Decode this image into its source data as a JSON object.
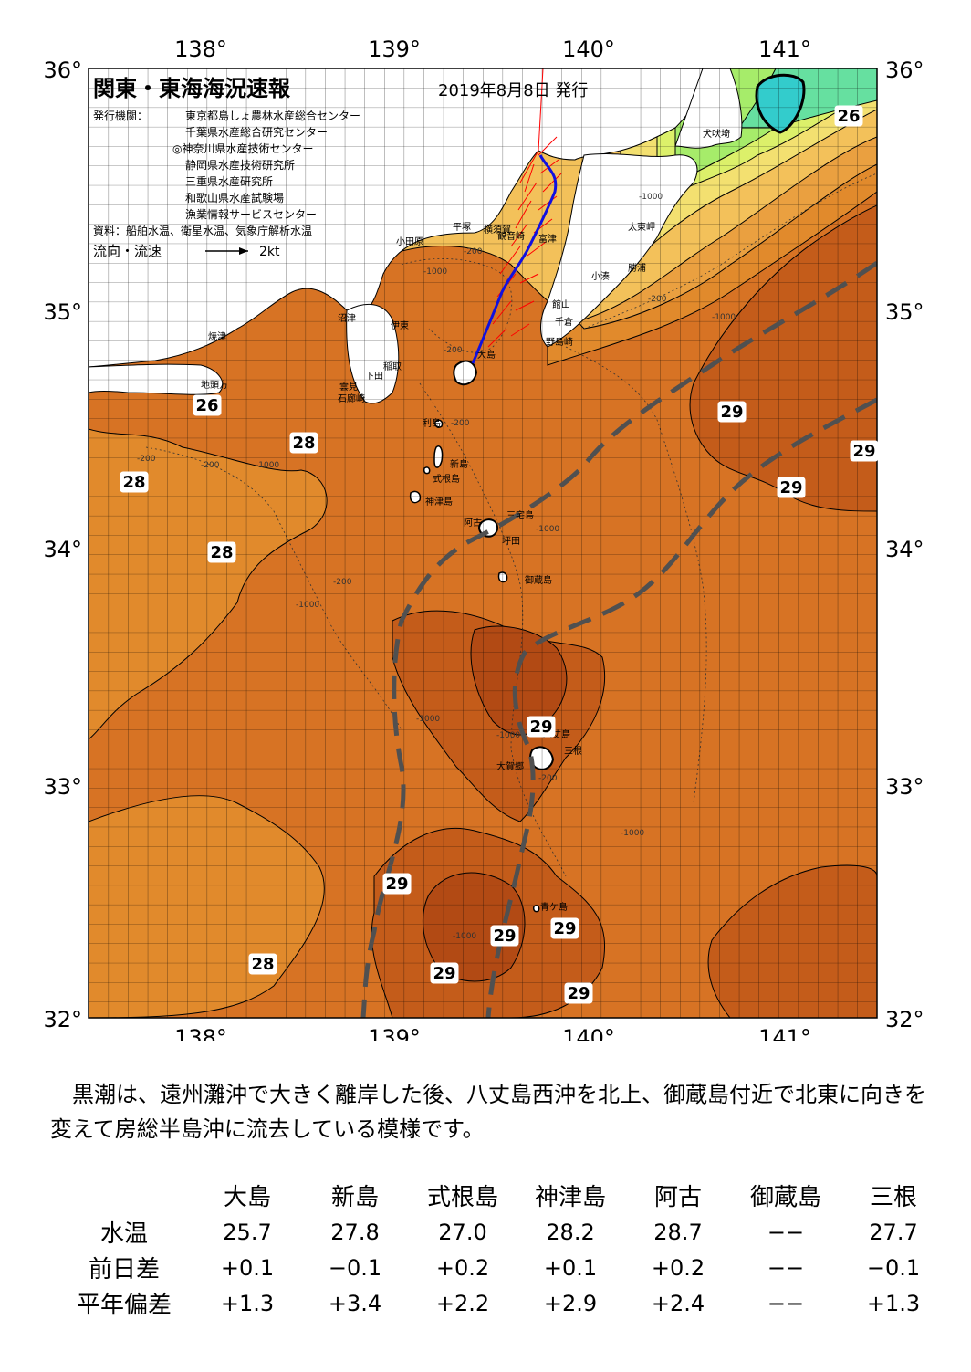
{
  "header": {
    "title": "関東・東海海況速報",
    "issue_date": "2019年8月8日 発行",
    "issuer_label": "発行機関：",
    "issuers": [
      "東京都島しょ農林水産総合センター",
      "千葉県水産総合研究センター",
      "◎神奈川県水産技術センター",
      "静岡県水産技術研究所",
      "三重県水産研究所",
      "和歌山県水産試験場",
      "漁業情報サービスセンター"
    ],
    "sources": "資料：船舶水温、衛星水温、気象庁解析水温",
    "flow_legend_label": "流向・流速",
    "flow_legend_speed": "2kt"
  },
  "axes": {
    "lon_labels": [
      "138°",
      "139°",
      "140°",
      "141°"
    ],
    "lat_labels": [
      "36°",
      "35°",
      "34°",
      "33°",
      "32°"
    ]
  },
  "places": {
    "inubosaki": "犬吠埼",
    "taitomisaki": "太東岬",
    "katsuura": "勝浦",
    "kominato": "小湊",
    "futtsu": "富津",
    "kannonzaki": "観音崎",
    "yokosuka": "横須賀",
    "hiratsuka": "平塚",
    "odawara": "小田原",
    "tateyama": "館山",
    "chikura": "千倉",
    "nojimazaki": "野島崎",
    "numazu": "沼津",
    "ito": "伊東",
    "inatori": "稲取",
    "shimoda": "下田",
    "kumomi": "雲見",
    "irozaki": "石廊崎",
    "yaizu": "焼津",
    "omaezaki": "地頭方",
    "oshima": "大島",
    "toshima": "利島",
    "niijima": "新島",
    "shikinejima": "式根島",
    "kozushima": "神津島",
    "miyakejima": "三宅島",
    "ako": "阿古",
    "tsubota": "坪田",
    "mikurajima": "御蔵島",
    "hachijojima": "八丈島",
    "mitsune": "三根",
    "okago": "大賀郷",
    "aogashima": "青ケ島"
  },
  "isotherm_labels": [
    "26",
    "26",
    "28",
    "28",
    "28",
    "28",
    "29",
    "29",
    "29",
    "29",
    "29",
    "29",
    "29",
    "29",
    "29"
  ],
  "depth_labels": [
    "-1000",
    "-200",
    "-200",
    "-1000",
    "-200",
    "-200",
    "-200",
    "-1000",
    "-1000",
    "-1000",
    "-1000",
    "-1000",
    "-200",
    "-1000",
    "-1000",
    "-200",
    "-1000",
    "-200"
  ],
  "colors": {
    "t_le23": "#33cccc",
    "t_24": "#66e0a0",
    "t_25": "#a6ec6a",
    "t_26": "#dcf06a",
    "t_26_5": "#f3e070",
    "t_27": "#f3c15a",
    "t_27_5": "#eaa040",
    "t_28": "#e18a2c",
    "t_28_5": "#d77324",
    "t_29": "#c45c1a",
    "t_29_5": "#b24a14",
    "t_30": "#9a3a0e",
    "land": "#ffffff",
    "kuroshio_axis": "#505050",
    "ship_track": "#1010e0",
    "current_vectors": "#ff0000"
  },
  "description": "黒潮は、遠州灘沖で大きく離岸した後、八丈島西沖を北上、御蔵島付近で北東に向きを変えて房総半島沖に流去している模様です。",
  "station_table": {
    "stations": [
      "大島",
      "新島",
      "式根島",
      "神津島",
      "阿古",
      "御蔵島",
      "三根"
    ],
    "rows": [
      {
        "label": "水温",
        "values": [
          "25.7",
          "27.8",
          "27.0",
          "28.2",
          "28.7",
          "−−",
          "27.7"
        ]
      },
      {
        "label": "前日差",
        "values": [
          "+0.1",
          "−0.1",
          "+0.2",
          "+0.1",
          "+0.2",
          "−−",
          "−0.1"
        ]
      },
      {
        "label": "平年偏差",
        "values": [
          "+1.3",
          "+3.4",
          "+2.2",
          "+2.9",
          "+2.4",
          "−−",
          "+1.3"
        ]
      }
    ]
  }
}
